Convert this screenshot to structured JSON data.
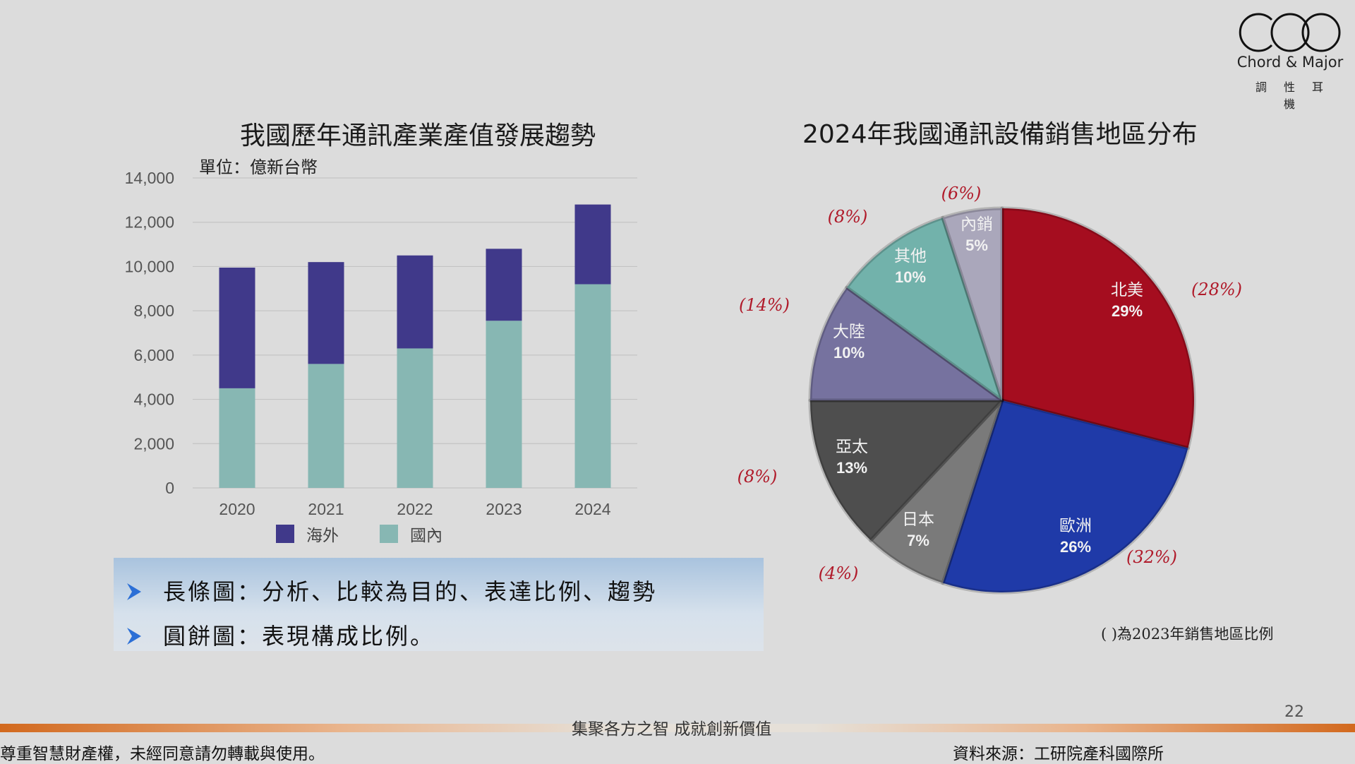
{
  "logo": {
    "name": "Chord & Major",
    "subtitle": "調性耳機"
  },
  "chart_data": [
    {
      "type": "bar",
      "stacked": true,
      "title": "我國歷年通訊產業產值發展趨勢",
      "unit": "單位：億新台幣",
      "categories": [
        "2020",
        "2021",
        "2022",
        "2023",
        "2024"
      ],
      "series": [
        {
          "name": "國內",
          "color": "#87b7b3",
          "values": [
            4500,
            5600,
            6300,
            7550,
            9200
          ]
        },
        {
          "name": "海外",
          "color": "#40398a",
          "values": [
            5450,
            4600,
            4200,
            3250,
            3600
          ]
        }
      ],
      "legend_order": [
        "海外",
        "國內"
      ],
      "ylim": [
        0,
        14000
      ],
      "yticks": [
        0,
        2000,
        4000,
        6000,
        8000,
        10000,
        12000,
        14000
      ],
      "ytick_labels": [
        "0",
        "2,000",
        "4,000",
        "6,000",
        "8,000",
        "10,000",
        "12,000",
        "14,000"
      ],
      "grid": true,
      "legend": "bottom"
    },
    {
      "type": "pie",
      "title": "2024年我國通訊設備銷售地區分布",
      "slices": [
        {
          "label": "北美",
          "value": 29,
          "pct": "29%",
          "prev": "(28%)",
          "color": "#a50d1f"
        },
        {
          "label": "歐洲",
          "value": 26,
          "pct": "26%",
          "prev": "(32%)",
          "color": "#1f3aa8"
        },
        {
          "label": "日本",
          "value": 7,
          "pct": "7%",
          "prev": "(4%)",
          "color": "#7a7a7a"
        },
        {
          "label": "亞太",
          "value": 13,
          "pct": "13%",
          "prev": "(8%)",
          "color": "#4e4e4e"
        },
        {
          "label": "大陸",
          "value": 10,
          "pct": "10%",
          "prev": "(14%)",
          "color": "#76729f"
        },
        {
          "label": "其他",
          "value": 10,
          "pct": "10%",
          "prev": "(8%)",
          "color": "#72b2ab"
        },
        {
          "label": "內銷",
          "value": 5,
          "pct": "5%",
          "prev": "(6%)",
          "color": "#aaa7bb"
        }
      ],
      "note": "( )為2023年銷售地區比例"
    }
  ],
  "callout": {
    "items": [
      "長條圖：分析、比較為目的、表達比例、趨勢",
      "圓餅圖：表現構成比例。"
    ]
  },
  "footer": {
    "slogan": "集聚各方之智  成就創新價值",
    "page_number": "22",
    "copyright": "尊重智慧財產權，未經同意請勿轉載與使用。",
    "source": "資料來源：工研院產科國際所"
  },
  "colors": {
    "accent": "#d2691e",
    "arrow": "#2b6fd6",
    "prev_label": "#b01a2a"
  }
}
